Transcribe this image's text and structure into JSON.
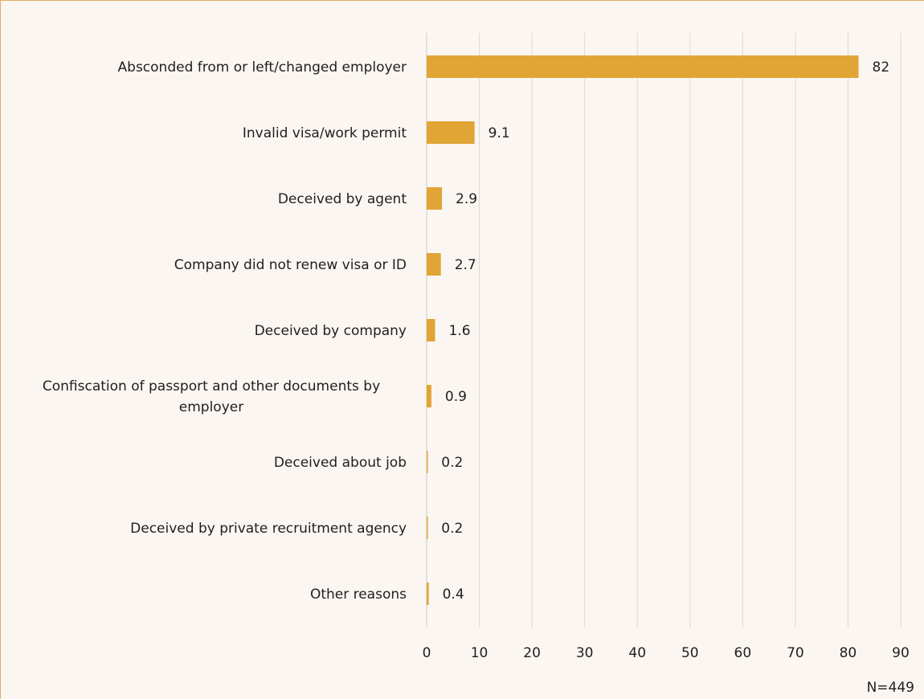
{
  "chart_data": {
    "type": "bar",
    "orientation": "horizontal",
    "categories": [
      "Absconded from or left/changed employer",
      "Invalid visa/work permit",
      "Deceived by agent",
      "Company did not renew visa or ID",
      "Deceived by company",
      "Confiscation of passport and other documents by employer",
      "Deceived about job",
      "Deceived by private recruitment agency",
      "Other reasons"
    ],
    "category_lines": [
      [
        "Absconded from or left/changed employer"
      ],
      [
        "Invalid visa/work permit"
      ],
      [
        "Deceived by agent"
      ],
      [
        "Company did not renew visa or ID"
      ],
      [
        "Deceived by company"
      ],
      [
        "Confiscation of passport and other documents by",
        "employer"
      ],
      [
        "Deceived about job"
      ],
      [
        "Deceived by private recruitment agency"
      ],
      [
        "Other reasons"
      ]
    ],
    "values": [
      82,
      9.1,
      2.9,
      2.7,
      1.6,
      0.9,
      0.2,
      0.2,
      0.4
    ],
    "value_labels": [
      "82",
      "9.1",
      "2.9",
      "2.7",
      "1.6",
      "0.9",
      "0.2",
      "0.2",
      "0.4"
    ],
    "xlim": [
      0,
      90
    ],
    "xticks": [
      0,
      10,
      20,
      30,
      40,
      50,
      60,
      70,
      80,
      90
    ],
    "grid": true,
    "title": "",
    "xlabel": "",
    "ylabel": "",
    "bar_color": "#e0a535"
  },
  "note": "N=449",
  "colors": {
    "background": "#fbf6f1",
    "border": "#e2ad65",
    "gridline": "#dcd8d2"
  }
}
